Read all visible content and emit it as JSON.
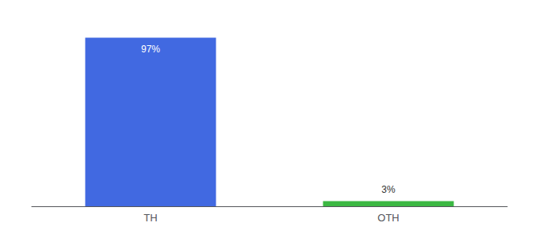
{
  "chart_data": {
    "type": "bar",
    "categories": [
      "TH",
      "OTH"
    ],
    "values": [
      97,
      3
    ],
    "value_labels": [
      "97%",
      "3%"
    ],
    "data_labels": true,
    "colors": [
      "#4169e1",
      "#3cb843"
    ],
    "ylim": [
      0,
      105
    ],
    "tick_labels": "x",
    "grid": false
  }
}
